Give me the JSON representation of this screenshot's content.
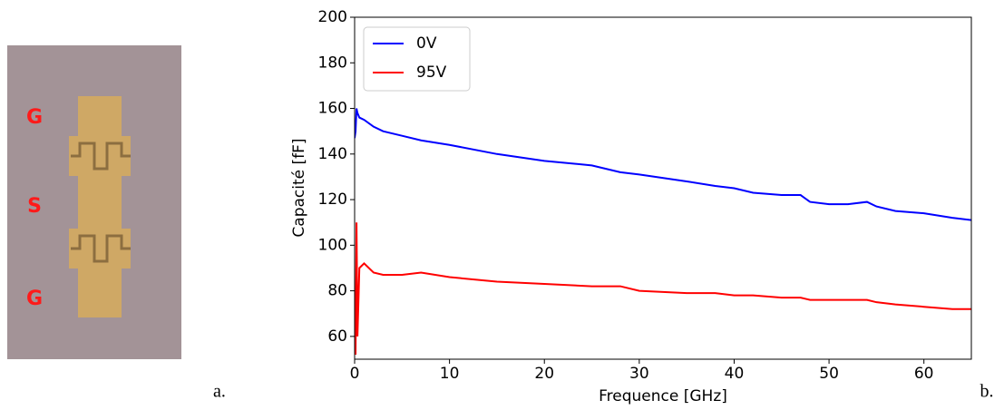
{
  "chart_data": {
    "type": "line",
    "xlabel": "Frequence [GHz]",
    "ylabel": "Capacité [fF]",
    "x": [
      0,
      0.1,
      0.2,
      0.3,
      0.5,
      1,
      2,
      3,
      5,
      7,
      10,
      15,
      20,
      25,
      28,
      30,
      35,
      38,
      40,
      42,
      45,
      47,
      48,
      50,
      52,
      54,
      55,
      57,
      60,
      63,
      65
    ],
    "series": [
      {
        "name": "0V",
        "color": "#0000ff",
        "values": [
          147,
          150,
          160,
          158,
          156,
          155,
          152,
          150,
          148,
          146,
          144,
          140,
          137,
          135,
          132,
          131,
          128,
          126,
          125,
          123,
          122,
          122,
          119,
          118,
          118,
          119,
          117,
          115,
          114,
          112,
          111
        ]
      },
      {
        "name": "95V",
        "color": "#ff0000",
        "values": [
          80,
          52,
          110,
          60,
          90,
          92,
          88,
          87,
          87,
          88,
          86,
          84,
          83,
          82,
          82,
          80,
          79,
          79,
          78,
          78,
          77,
          77,
          76,
          76,
          76,
          76,
          75,
          74,
          73,
          72,
          72
        ]
      }
    ],
    "xlim": [
      0,
      65
    ],
    "xticks": [
      0,
      10,
      20,
      30,
      40,
      50,
      60
    ],
    "ylim": [
      50,
      200
    ],
    "yticks": [
      60,
      80,
      100,
      120,
      140,
      160,
      180,
      200
    ],
    "legend": "upper left"
  },
  "figure": {
    "photo_labels": [
      "G",
      "S",
      "G"
    ],
    "panel_labels": [
      "a.",
      "b."
    ]
  }
}
